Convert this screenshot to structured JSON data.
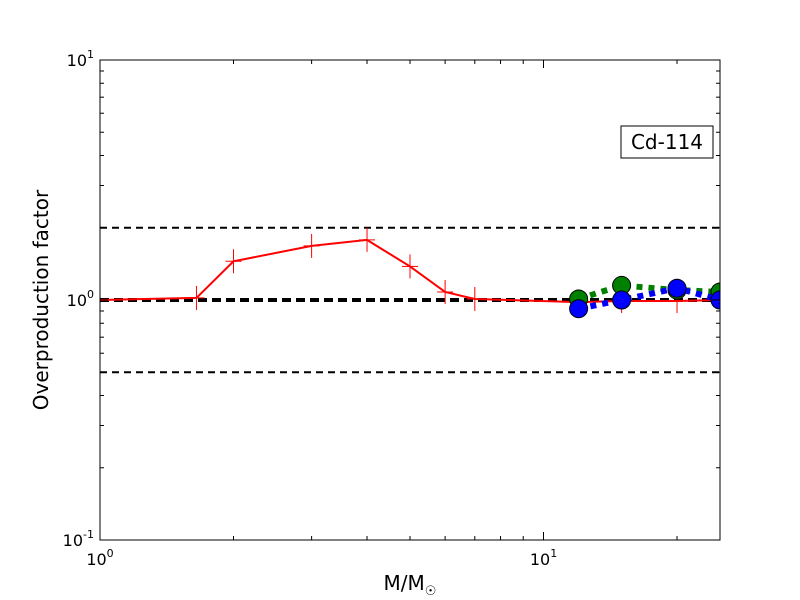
{
  "chart_data": {
    "type": "line",
    "title": "",
    "annotation": "Cd-114",
    "xlabel": "M/M",
    "xlabel_symbol": "☉",
    "ylabel": "Overproduction factor",
    "xscale": "log",
    "yscale": "log",
    "xlim": [
      1,
      25
    ],
    "ylim": [
      0.1,
      10
    ],
    "x_ticks": [
      {
        "value": 1,
        "base": "10",
        "exp": "0"
      },
      {
        "value": 10,
        "base": "10",
        "exp": "1"
      }
    ],
    "y_ticks": [
      {
        "value": 0.1,
        "base": "10",
        "exp": "-1"
      },
      {
        "value": 1,
        "base": "10",
        "exp": "0"
      },
      {
        "value": 10,
        "base": "10",
        "exp": "1"
      }
    ],
    "reference_lines": [
      {
        "y": 2.0,
        "style": "dashed"
      },
      {
        "y": 1.0,
        "style": "dashed-thick"
      },
      {
        "y": 0.5,
        "style": "dashed"
      }
    ],
    "series": [
      {
        "color": "#ff0000",
        "line": "solid",
        "marker": "plus",
        "x": [
          1.0,
          1.65,
          2.0,
          3.0,
          4.0,
          5.0,
          6.0,
          7.0,
          12.0,
          15.0,
          20.0,
          25.0
        ],
        "y": [
          1.0,
          1.02,
          1.45,
          1.68,
          1.78,
          1.38,
          1.08,
          1.01,
          0.98,
          0.99,
          0.99,
          1.0
        ]
      },
      {
        "color": "#008000",
        "line": "dotted",
        "marker": "circle",
        "x": [
          12.0,
          15.0,
          20.0,
          25.0
        ],
        "y": [
          1.01,
          1.15,
          1.1,
          1.08
        ]
      },
      {
        "color": "#0000ff",
        "line": "dotted",
        "marker": "circle",
        "x": [
          12.0,
          15.0,
          20.0,
          25.0
        ],
        "y": [
          0.92,
          1.0,
          1.12,
          1.0
        ]
      }
    ]
  }
}
